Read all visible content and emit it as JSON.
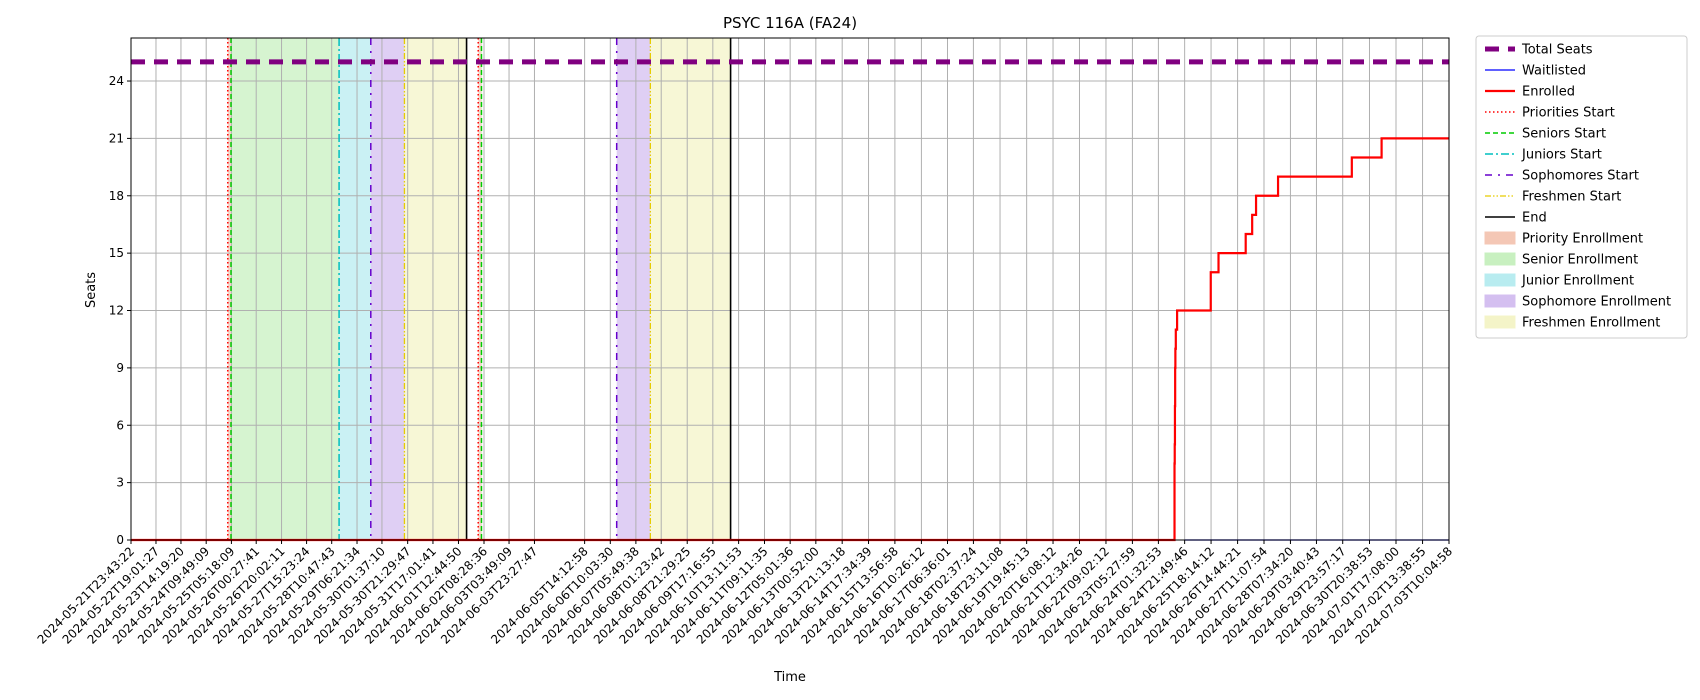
{
  "chart_data": {
    "type": "line",
    "title": "PSYC 116A (FA24)",
    "xlabel": "Time",
    "ylabel": "Seats",
    "ylim": [
      0,
      26.25
    ],
    "xlim": [
      "2024-05-21T23:43:22",
      "2024-07-03T10:04:58"
    ],
    "yticks": [
      0,
      3,
      6,
      9,
      12,
      15,
      18,
      21,
      24
    ],
    "xticks": [
      "2024-05-21T23:43:22",
      "2024-05-22T19:01:27",
      "2024-05-23T14:19:20",
      "2024-05-24T09:49:09",
      "2024-05-25T05:18:09",
      "2024-05-26T00:27:41",
      "2024-05-26T20:02:11",
      "2024-05-27T15:23:24",
      "2024-05-28T10:47:43",
      "2024-05-29T06:21:34",
      "2024-05-30T01:37:10",
      "2024-05-30T21:29:47",
      "2024-05-31T17:01:41",
      "2024-06-01T12:44:50",
      "2024-06-02T08:28:36",
      "2024-06-03T03:49:09",
      "2024-06-03T23:27:47",
      "2024-06-05T14:12:58",
      "2024-06-06T10:03:30",
      "2024-06-07T05:49:38",
      "2024-06-08T01:23:42",
      "2024-06-08T21:29:25",
      "2024-06-09T17:16:55",
      "2024-06-10T13:11:53",
      "2024-06-11T09:11:35",
      "2024-06-12T05:01:36",
      "2024-06-13T00:52:00",
      "2024-06-13T21:13:18",
      "2024-06-14T17:34:39",
      "2024-06-15T13:56:58",
      "2024-06-16T10:26:12",
      "2024-06-17T06:36:01",
      "2024-06-18T02:37:24",
      "2024-06-18T23:11:08",
      "2024-06-19T19:45:13",
      "2024-06-20T16:08:12",
      "2024-06-21T12:34:26",
      "2024-06-22T09:02:12",
      "2024-06-23T05:27:59",
      "2024-06-24T01:32:53",
      "2024-06-24T21:49:46",
      "2024-06-25T18:14:12",
      "2024-06-26T14:44:21",
      "2024-06-27T11:07:54",
      "2024-06-28T07:34:20",
      "2024-06-29T03:40:43",
      "2024-06-29T23:57:17",
      "2024-06-30T20:38:53",
      "2024-07-01T17:08:00",
      "2024-07-02T13:38:55",
      "2024-07-03T10:04:58"
    ],
    "grid": true,
    "legend_position": "outside-right",
    "series": [
      {
        "name": "Total Seats",
        "color": "#800080",
        "style": "dashed-thick",
        "x": [
          "2024-05-21T23:43:22",
          "2024-07-03T10:04:58"
        ],
        "y": [
          25,
          25
        ]
      },
      {
        "name": "Waitlisted",
        "color": "#0000ff",
        "style": "solid-thin",
        "x": [
          "2024-06-24T21:49:46",
          "2024-07-03T10:04:58"
        ],
        "y": [
          0,
          0
        ]
      },
      {
        "name": "Enrolled",
        "color": "#ff0000",
        "style": "step-thick",
        "x": [
          "2024-05-21T23:43:22",
          "2024-06-24T14:00:00",
          "2024-06-24T14:10:00",
          "2024-06-24T14:20:00",
          "2024-06-24T14:30:00",
          "2024-06-24T14:40:00",
          "2024-06-24T15:00:00",
          "2024-06-24T16:00:00",
          "2024-06-24T18:00:00",
          "2024-06-24T20:00:00",
          "2024-06-25T03:00:00",
          "2024-06-25T18:00:00",
          "2024-06-26T00:00:00",
          "2024-06-26T03:00:00",
          "2024-06-26T21:00:00",
          "2024-06-27T02:00:00",
          "2024-06-27T05:00:00",
          "2024-06-27T11:00:00",
          "2024-06-27T22:00:00",
          "2024-06-30T07:00:00",
          "2024-07-01T06:00:00",
          "2024-07-03T10:04:58"
        ],
        "y": [
          0,
          4,
          5,
          7,
          9,
          10,
          11,
          12,
          12,
          12,
          12,
          14,
          15,
          15,
          16,
          17,
          18,
          18,
          19,
          20,
          21,
          21
        ]
      }
    ],
    "vlines": [
      {
        "name": "Priorities Start",
        "color": "#ff0000",
        "style": "dotted",
        "x": [
          "2024-05-25T02:30:00",
          "2024-06-02T04:00:00"
        ]
      },
      {
        "name": "Seniors Start",
        "color": "#00cc00",
        "style": "dashed",
        "x": [
          "2024-05-25T05:00:00",
          "2024-06-02T06:30:00"
        ]
      },
      {
        "name": "Juniors Start",
        "color": "#00bfbf",
        "style": "dashdot",
        "x": [
          "2024-05-28T16:30:00"
        ]
      },
      {
        "name": "Sophomores Start",
        "color": "#6600cc",
        "style": "dashdot-sparse",
        "x": [
          "2024-05-29T17:00:00",
          "2024-06-06T15:00:00"
        ]
      },
      {
        "name": "Freshmen Start",
        "color": "#e6cc00",
        "style": "dashdotdot",
        "x": [
          "2024-05-30T19:00:00",
          "2024-06-07T17:00:00"
        ]
      },
      {
        "name": "End",
        "color": "#000000",
        "style": "solid",
        "x": [
          "2024-06-01T19:00:00",
          "2024-06-10T07:00:00"
        ]
      }
    ],
    "spans": [
      {
        "name": "Priority Enrollment",
        "color": "#f4c7b5",
        "ranges": [
          [
            "2024-05-25T02:30:00",
            "2024-05-25T05:00:00"
          ],
          [
            "2024-06-02T04:00:00",
            "2024-06-02T06:30:00"
          ]
        ]
      },
      {
        "name": "Senior Enrollment",
        "color": "#c8f0c0",
        "ranges": [
          [
            "2024-05-25T05:00:00",
            "2024-05-28T16:30:00"
          ],
          [
            "2024-06-02T06:30:00",
            "2024-06-02T07:00:00"
          ]
        ]
      },
      {
        "name": "Junior Enrollment",
        "color": "#b8ecf0",
        "ranges": [
          [
            "2024-05-28T16:30:00",
            "2024-05-29T17:00:00"
          ]
        ]
      },
      {
        "name": "Sophomore Enrollment",
        "color": "#d4bff0",
        "ranges": [
          [
            "2024-05-29T17:00:00",
            "2024-05-30T19:00:00"
          ],
          [
            "2024-06-06T15:00:00",
            "2024-06-07T17:00:00"
          ]
        ]
      },
      {
        "name": "Freshmen Enrollment",
        "color": "#f4f4c8",
        "ranges": [
          [
            "2024-05-30T19:00:00",
            "2024-06-01T19:00:00"
          ],
          [
            "2024-06-07T17:00:00",
            "2024-06-10T07:00:00"
          ]
        ]
      }
    ],
    "legend": [
      {
        "label": "Total Seats",
        "kind": "line",
        "color": "#800080",
        "style": "dashed-thick"
      },
      {
        "label": "Waitlisted",
        "kind": "line",
        "color": "#0000ff",
        "style": "solid-thin"
      },
      {
        "label": "Enrolled",
        "kind": "line",
        "color": "#ff0000",
        "style": "solid-thick"
      },
      {
        "label": "Priorities Start",
        "kind": "line",
        "color": "#ff0000",
        "style": "dotted"
      },
      {
        "label": "Seniors Start",
        "kind": "line",
        "color": "#00cc00",
        "style": "dashed"
      },
      {
        "label": "Juniors Start",
        "kind": "line",
        "color": "#00bfbf",
        "style": "dashdot"
      },
      {
        "label": "Sophomores Start",
        "kind": "line",
        "color": "#6600cc",
        "style": "dashdot-sparse"
      },
      {
        "label": "Freshmen Start",
        "kind": "line",
        "color": "#e6cc00",
        "style": "dashdotdot"
      },
      {
        "label": "End",
        "kind": "line",
        "color": "#000000",
        "style": "solid"
      },
      {
        "label": "Priority Enrollment",
        "kind": "patch",
        "color": "#f4c7b5"
      },
      {
        "label": "Senior Enrollment",
        "kind": "patch",
        "color": "#c8f0c0"
      },
      {
        "label": "Junior Enrollment",
        "kind": "patch",
        "color": "#b8ecf0"
      },
      {
        "label": "Sophomore Enrollment",
        "kind": "patch",
        "color": "#d4bff0"
      },
      {
        "label": "Freshmen Enrollment",
        "kind": "patch",
        "color": "#f4f4c8"
      }
    ]
  }
}
